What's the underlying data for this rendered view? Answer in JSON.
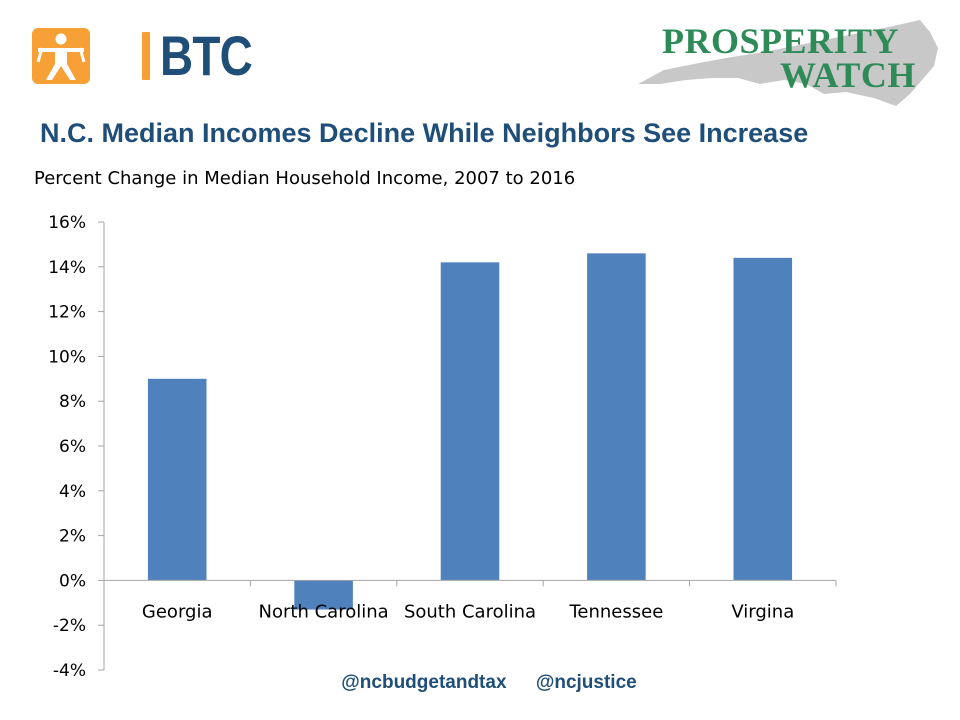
{
  "logos": {
    "btc_wordmark": "BTC",
    "prosperity_line1": "PROSPERITY",
    "prosperity_line2": "WATCH"
  },
  "title": "N.C. Median Incomes Decline While Neighbors See Increase",
  "subtitle": "Percent Change in Median Household Income, 2007 to 2016",
  "footer": {
    "handle1": "@ncbudgetandtax",
    "handle2": "@ncjustice"
  },
  "colors": {
    "bar": "#4f81bd",
    "title": "#1f4e79",
    "axis": "#a6a6a6",
    "btc_orange": "#f7a035",
    "prosperity_green": "#2e8b57",
    "nc_map_gray": "#c8c8c8"
  },
  "chart_data": {
    "type": "bar",
    "title": "",
    "xlabel": "",
    "ylabel": "",
    "categories": [
      "Georgia",
      "North Carolina",
      "South Carolina",
      "Tennessee",
      "Virgina"
    ],
    "values": [
      9.0,
      -1.3,
      14.2,
      14.6,
      14.4
    ],
    "value_unit": "%",
    "ylim": [
      -4,
      16
    ],
    "yticks": [
      16,
      14,
      12,
      10,
      8,
      6,
      4,
      2,
      0,
      -2,
      -4
    ],
    "ytick_labels": [
      "16%",
      "14%",
      "12%",
      "10%",
      "8%",
      "6%",
      "4%",
      "2%",
      "0%",
      "-2%",
      "-4%"
    ],
    "grid": false,
    "legend": "none"
  }
}
